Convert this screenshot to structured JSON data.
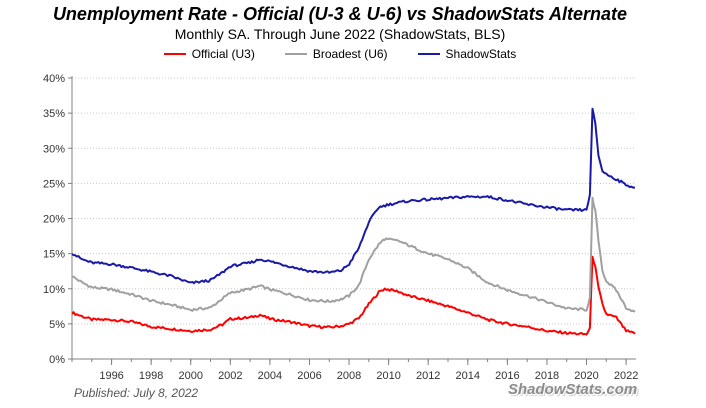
{
  "chart_data": {
    "type": "line",
    "title": "Unemployment Rate - Official (U-3 & U-6) vs ShadowStats Alternate",
    "subtitle": "Monthly SA. Through June 2022  (ShadowStats, BLS)",
    "xlabel": "",
    "ylabel": "",
    "xlim": [
      1994.0,
      2022.5
    ],
    "ylim": [
      0,
      40
    ],
    "y_ticks": [
      0,
      5,
      10,
      15,
      20,
      25,
      30,
      35,
      40
    ],
    "y_tick_labels": [
      "0%",
      "5%",
      "10%",
      "15%",
      "20%",
      "25%",
      "30%",
      "35%",
      "40%"
    ],
    "x_ticks": [
      1996,
      1998,
      2000,
      2002,
      2004,
      2006,
      2008,
      2010,
      2012,
      2014,
      2016,
      2018,
      2020,
      2022
    ],
    "x_tick_labels": [
      "1996",
      "1998",
      "2000",
      "2002",
      "2004",
      "2006",
      "2008",
      "2010",
      "2012",
      "2014",
      "2016",
      "2018",
      "2020",
      "2022"
    ],
    "grid": "horizontal dotted",
    "legend": "top-center",
    "series": [
      {
        "name": "Official (U3)",
        "color": "#ff0000",
        "points": [
          [
            1994.0,
            6.6
          ],
          [
            1994.5,
            6.1
          ],
          [
            1995.0,
            5.6
          ],
          [
            1996.0,
            5.6
          ],
          [
            1997.0,
            5.3
          ],
          [
            1998.0,
            4.6
          ],
          [
            1999.0,
            4.3
          ],
          [
            2000.0,
            4.0
          ],
          [
            2001.0,
            4.2
          ],
          [
            2001.6,
            4.9
          ],
          [
            2002.0,
            5.7
          ],
          [
            2003.0,
            5.9
          ],
          [
            2003.5,
            6.3
          ],
          [
            2004.0,
            5.7
          ],
          [
            2005.0,
            5.3
          ],
          [
            2006.0,
            4.7
          ],
          [
            2007.0,
            4.5
          ],
          [
            2007.6,
            4.7
          ],
          [
            2008.0,
            5.0
          ],
          [
            2008.5,
            5.8
          ],
          [
            2009.0,
            7.8
          ],
          [
            2009.5,
            9.5
          ],
          [
            2009.8,
            10.0
          ],
          [
            2010.5,
            9.6
          ],
          [
            2011.0,
            9.0
          ],
          [
            2012.0,
            8.3
          ],
          [
            2013.0,
            7.5
          ],
          [
            2014.0,
            6.6
          ],
          [
            2015.0,
            5.6
          ],
          [
            2016.0,
            5.0
          ],
          [
            2017.0,
            4.6
          ],
          [
            2018.0,
            4.0
          ],
          [
            2019.0,
            3.7
          ],
          [
            2020.0,
            3.5
          ],
          [
            2020.17,
            4.4
          ],
          [
            2020.3,
            14.7
          ],
          [
            2020.45,
            13.0
          ],
          [
            2020.6,
            10.2
          ],
          [
            2020.8,
            7.8
          ],
          [
            2021.0,
            6.4
          ],
          [
            2021.5,
            5.9
          ],
          [
            2022.0,
            4.0
          ],
          [
            2022.45,
            3.6
          ]
        ]
      },
      {
        "name": "Broadest (U6)",
        "color": "#a0a0a0",
        "points": [
          [
            1994.0,
            11.8
          ],
          [
            1994.5,
            10.9
          ],
          [
            1995.0,
            10.2
          ],
          [
            1996.0,
            9.9
          ],
          [
            1997.0,
            9.2
          ],
          [
            1998.0,
            8.3
          ],
          [
            1999.0,
            7.7
          ],
          [
            2000.0,
            7.0
          ],
          [
            2001.0,
            7.3
          ],
          [
            2001.6,
            8.6
          ],
          [
            2002.0,
            9.4
          ],
          [
            2003.0,
            10.0
          ],
          [
            2003.5,
            10.4
          ],
          [
            2004.0,
            9.9
          ],
          [
            2005.0,
            9.2
          ],
          [
            2006.0,
            8.4
          ],
          [
            2007.0,
            8.2
          ],
          [
            2007.6,
            8.5
          ],
          [
            2008.0,
            9.0
          ],
          [
            2008.5,
            10.5
          ],
          [
            2009.0,
            14.2
          ],
          [
            2009.5,
            16.3
          ],
          [
            2009.8,
            17.1
          ],
          [
            2010.5,
            16.8
          ],
          [
            2011.0,
            16.2
          ],
          [
            2012.0,
            15.0
          ],
          [
            2013.0,
            14.2
          ],
          [
            2014.0,
            12.9
          ],
          [
            2015.0,
            10.9
          ],
          [
            2016.0,
            9.8
          ],
          [
            2017.0,
            9.0
          ],
          [
            2018.0,
            8.1
          ],
          [
            2019.0,
            7.2
          ],
          [
            2020.0,
            7.0
          ],
          [
            2020.17,
            8.7
          ],
          [
            2020.3,
            22.8
          ],
          [
            2020.45,
            21.0
          ],
          [
            2020.6,
            17.0
          ],
          [
            2020.8,
            12.6
          ],
          [
            2021.0,
            11.1
          ],
          [
            2021.5,
            9.8
          ],
          [
            2022.0,
            7.3
          ],
          [
            2022.45,
            6.7
          ]
        ]
      },
      {
        "name": "ShadowStats",
        "color": "#1a1aa8",
        "points": [
          [
            1994.0,
            15.1
          ],
          [
            1994.5,
            14.2
          ],
          [
            1995.0,
            13.7
          ],
          [
            1996.0,
            13.5
          ],
          [
            1997.0,
            13.0
          ],
          [
            1998.0,
            12.4
          ],
          [
            1999.0,
            11.8
          ],
          [
            2000.0,
            10.8
          ],
          [
            2001.0,
            11.2
          ],
          [
            2001.6,
            12.3
          ],
          [
            2002.0,
            13.2
          ],
          [
            2003.0,
            13.7
          ],
          [
            2003.5,
            14.2
          ],
          [
            2004.0,
            13.9
          ],
          [
            2005.0,
            13.2
          ],
          [
            2006.0,
            12.5
          ],
          [
            2007.0,
            12.3
          ],
          [
            2007.6,
            12.6
          ],
          [
            2008.0,
            13.5
          ],
          [
            2008.5,
            15.8
          ],
          [
            2009.0,
            19.5
          ],
          [
            2009.5,
            21.6
          ],
          [
            2010.0,
            22.0
          ],
          [
            2011.0,
            22.5
          ],
          [
            2012.0,
            22.7
          ],
          [
            2013.0,
            22.9
          ],
          [
            2014.0,
            23.1
          ],
          [
            2015.0,
            23.1
          ],
          [
            2016.0,
            22.6
          ],
          [
            2017.0,
            22.0
          ],
          [
            2018.0,
            21.6
          ],
          [
            2019.0,
            21.2
          ],
          [
            2020.0,
            21.2
          ],
          [
            2020.17,
            23.5
          ],
          [
            2020.3,
            35.5
          ],
          [
            2020.45,
            33.5
          ],
          [
            2020.6,
            29.0
          ],
          [
            2020.8,
            26.8
          ],
          [
            2021.0,
            26.3
          ],
          [
            2021.5,
            25.6
          ],
          [
            2022.0,
            24.8
          ],
          [
            2022.45,
            24.4
          ]
        ]
      }
    ]
  },
  "footer": {
    "published": "Published: July 8, 2022",
    "watermark": "ShadowStats.com"
  }
}
